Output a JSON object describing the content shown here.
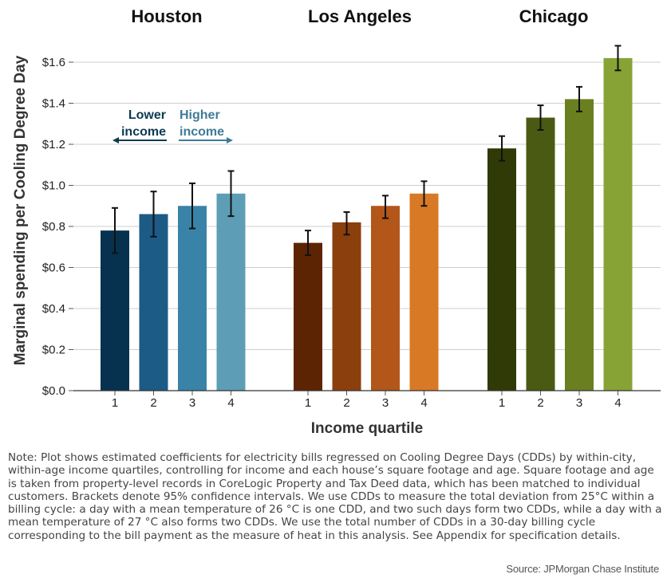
{
  "chart_data": {
    "type": "bar",
    "panels": [
      {
        "title": "Houston",
        "categories": [
          "1",
          "2",
          "3",
          "4"
        ],
        "values": [
          0.78,
          0.86,
          0.9,
          0.96
        ],
        "ci_low": [
          0.67,
          0.75,
          0.79,
          0.85
        ],
        "ci_high": [
          0.89,
          0.97,
          1.01,
          1.07
        ],
        "colors": [
          "#06314f",
          "#1c5b86",
          "#3a83a8",
          "#5d9eb6"
        ]
      },
      {
        "title": "Los Angeles",
        "categories": [
          "1",
          "2",
          "3",
          "4"
        ],
        "values": [
          0.72,
          0.82,
          0.9,
          0.96
        ],
        "ci_low": [
          0.66,
          0.76,
          0.84,
          0.9
        ],
        "ci_high": [
          0.78,
          0.87,
          0.95,
          1.02
        ],
        "colors": [
          "#5d2403",
          "#8b3f0d",
          "#b3561a",
          "#d87926"
        ]
      },
      {
        "title": "Chicago",
        "categories": [
          "1",
          "2",
          "3",
          "4"
        ],
        "values": [
          1.18,
          1.33,
          1.42,
          1.62
        ],
        "ci_low": [
          1.12,
          1.27,
          1.36,
          1.56
        ],
        "ci_high": [
          1.24,
          1.39,
          1.48,
          1.68
        ],
        "colors": [
          "#2f3a07",
          "#4a5a12",
          "#6a7f20",
          "#87a336"
        ]
      }
    ],
    "yticks": [
      "$0.0",
      "$0.2",
      "$0.4",
      "$0.6",
      "$0.8",
      "$1.0",
      "$1.2",
      "$1.4",
      "$1.6"
    ],
    "ylim": [
      0,
      1.7
    ],
    "xlabel": "Income quartile",
    "ylabel": "Marginal spending per Cooling Degree Day",
    "grid": true,
    "annotations": {
      "lower": "Lower\nincome",
      "higher": "Higher\nincome",
      "lower_color": "#0c3a52",
      "higher_color": "#3f7a98"
    }
  },
  "note": "Note: Plot shows estimated coefficients for electricity bills regressed on Cooling Degree Days (CDDs) by within-city, within-age income quartiles, controlling for income and each house’s square footage and age. Square footage and age is taken from property-level records in CoreLogic Property and Tax Deed data, which has been matched to individual customers. Brackets denote 95% confidence intervals. We use CDDs to measure the total deviation from 25°C within a billing cycle: a day with a mean temperature of 26 °C is one CDD, and two such days form two CDDs, while a day with a mean temperature of 27 °C also forms two CDDs. We use the total number of CDDs in a 30-day billing cycle corresponding to the bill payment as the measure of heat in this analysis. See Appendix for specification details.",
  "source": "Source: JPMorgan Chase Institute"
}
